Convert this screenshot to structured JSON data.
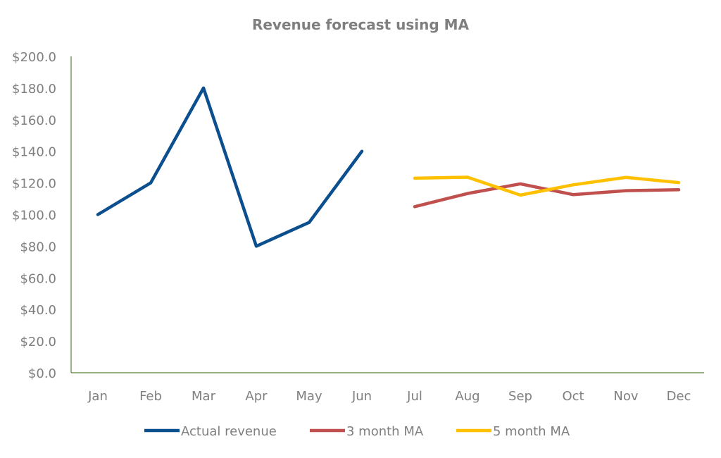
{
  "chart_data": {
    "type": "line",
    "title": "Revenue forecast using MA",
    "xlabel": "",
    "ylabel": "",
    "categories": [
      "Jan",
      "Feb",
      "Mar",
      "Apr",
      "May",
      "Jun",
      "Jul",
      "Aug",
      "Sep",
      "Oct",
      "Nov",
      "Dec"
    ],
    "ylim": [
      0,
      200
    ],
    "yticks": [
      "$0.0",
      "$20.0",
      "$40.0",
      "$60.0",
      "$80.0",
      "$100.0",
      "$120.0",
      "$140.0",
      "$160.0",
      "$180.0",
      "$200.0"
    ],
    "grid": false,
    "legend_position": "bottom",
    "series": [
      {
        "name": "Actual revenue",
        "color": "#0b4f8f",
        "values": [
          100,
          120,
          180,
          80,
          95,
          140,
          null,
          null,
          null,
          null,
          null,
          null
        ]
      },
      {
        "name": "3 month MA",
        "color": "#c0504d",
        "values": [
          null,
          null,
          null,
          null,
          null,
          null,
          105,
          113.3,
          119.4,
          112.6,
          115.1,
          115.7
        ]
      },
      {
        "name": "5 month MA",
        "color": "#ffc000",
        "values": [
          null,
          null,
          null,
          null,
          null,
          null,
          123,
          123.6,
          112.3,
          118.8,
          123.5,
          120.2
        ]
      }
    ]
  }
}
